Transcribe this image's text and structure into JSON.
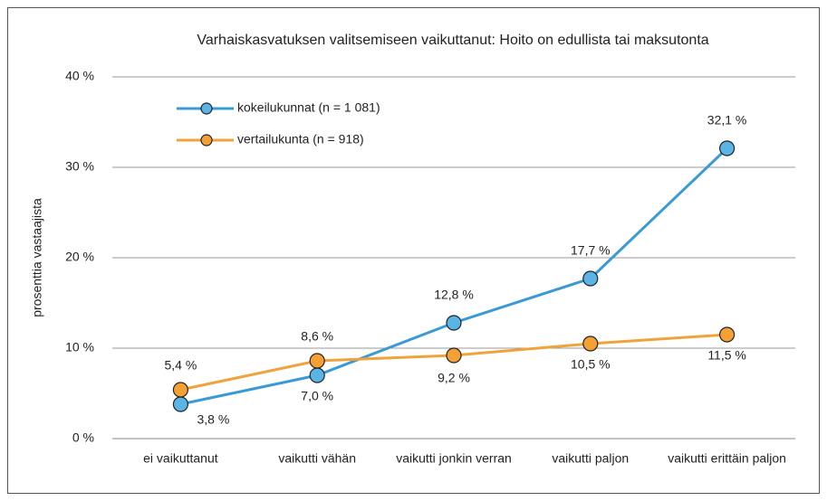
{
  "chart_data": {
    "type": "line",
    "title": "Varhaiskasvatuksen valitsemiseen vaikuttanut: Hoito on edullista tai maksutonta",
    "y_label": "prosenttia vastaajista",
    "categories": [
      "ei vaikuttanut",
      "vaikutti vähän",
      "vaikutti jonkin verran",
      "vaikutti paljon",
      "vaikutti erittäin paljon"
    ],
    "series": [
      {
        "name": "kokeilukunnat (n = 1 081)",
        "color": "#3a9ad6",
        "values": [
          3.8,
          7.0,
          12.8,
          17.7,
          32.1
        ],
        "value_labels": [
          "3,8 %",
          "7,0 %",
          "12,8 %",
          "17,7 %",
          "32,1 %"
        ]
      },
      {
        "name": "vertailukunta (n = 918)",
        "color": "#f0a23c",
        "values": [
          5.4,
          8.6,
          9.2,
          10.5,
          11.5
        ],
        "value_labels": [
          "5,4 %",
          "8,6 %",
          "9,2 %",
          "10,5 %",
          "11,5 %"
        ]
      }
    ],
    "ylim": [
      0,
      40
    ],
    "yticks": [
      {
        "value": 0,
        "label": "0 %"
      },
      {
        "value": 10,
        "label": "10 %"
      },
      {
        "value": 20,
        "label": "20 %"
      },
      {
        "value": 30,
        "label": "30 %"
      },
      {
        "value": 40,
        "label": "40 %"
      }
    ],
    "grid": true,
    "legend": "upper left"
  }
}
